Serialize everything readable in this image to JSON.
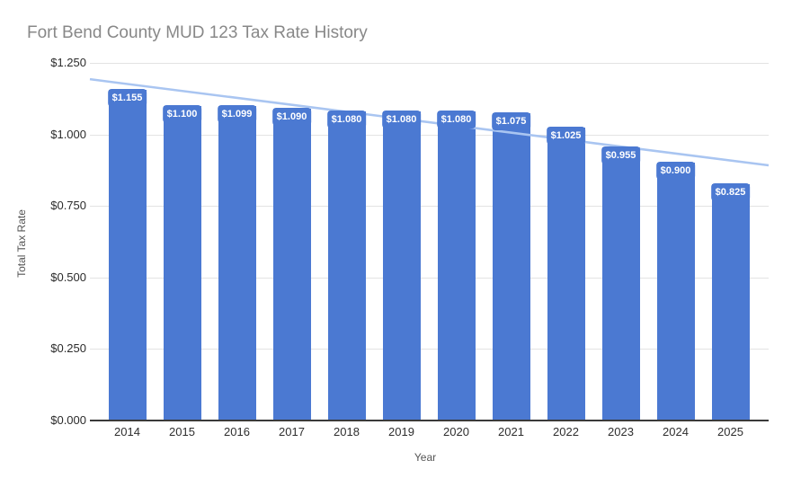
{
  "chart_data": {
    "type": "bar",
    "title": "Fort Bend County MUD 123 Tax Rate History",
    "xlabel": "Year",
    "ylabel": "Total Tax Rate",
    "categories": [
      "2014",
      "2015",
      "2016",
      "2017",
      "2018",
      "2019",
      "2020",
      "2021",
      "2022",
      "2023",
      "2024",
      "2025"
    ],
    "values": [
      1.155,
      1.1,
      1.099,
      1.09,
      1.08,
      1.08,
      1.08,
      1.075,
      1.025,
      0.955,
      0.9,
      0.825
    ],
    "bar_labels": [
      "$1.155",
      "$1.100",
      "$1.099",
      "$1.090",
      "$1.080",
      "$1.080",
      "$1.080",
      "$1.075",
      "$1.025",
      "$0.955",
      "$0.900",
      "$0.825"
    ],
    "ylim": [
      0,
      1.25
    ],
    "yticks": [
      {
        "value": 0.0,
        "label": "$0.000"
      },
      {
        "value": 0.25,
        "label": "$0.250"
      },
      {
        "value": 0.5,
        "label": "$0.500"
      },
      {
        "value": 0.75,
        "label": "$0.750"
      },
      {
        "value": 1.0,
        "label": "$1.000"
      },
      {
        "value": 1.25,
        "label": "$1.250"
      }
    ],
    "grid": true,
    "legend": "none",
    "trendline": {
      "start_value": 1.193,
      "end_value": 0.892
    },
    "colors": {
      "bar": "#4b79d2",
      "trend": "#a9c5f1",
      "grid": "#e3e3e3",
      "axis": "#3a3a3a",
      "title": "#888888",
      "bar_label_text": "#ffffff",
      "tick_text": "#2b2b2b",
      "axis_title_text": "#555555"
    }
  }
}
